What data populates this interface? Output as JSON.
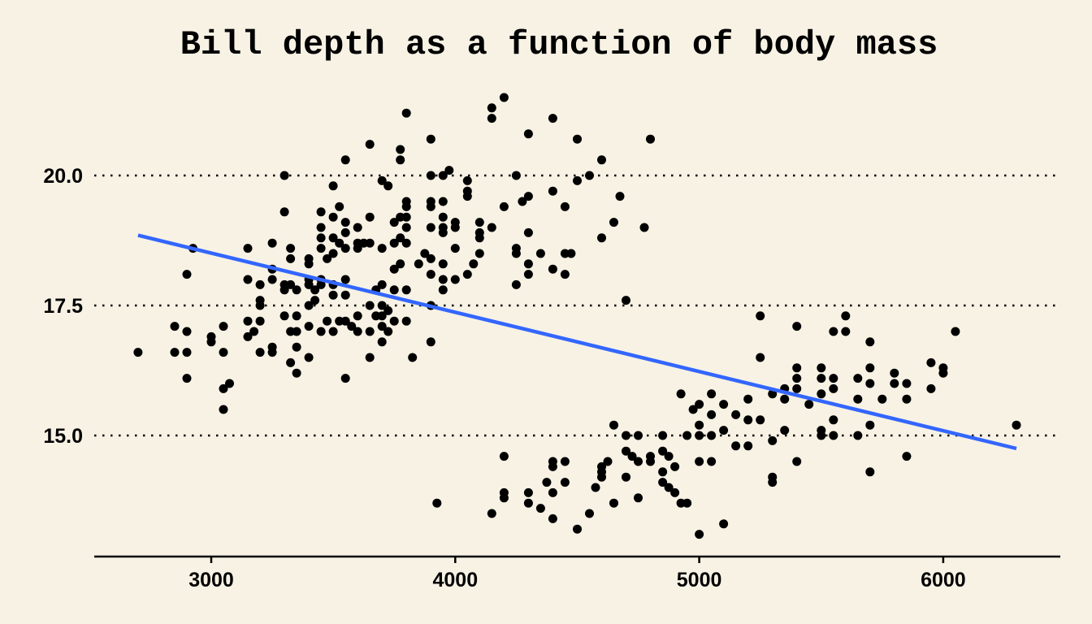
{
  "chart_data": {
    "type": "scatter",
    "title": "Bill depth as a function of body mass",
    "xlabel": "",
    "ylabel": "",
    "xlim": [
      2500,
      6480
    ],
    "ylim": [
      12.75,
      21.8
    ],
    "x_ticks": [
      3000,
      4000,
      5000,
      6000
    ],
    "y_ticks": [
      15.0,
      17.5,
      20.0
    ],
    "x_tick_labels": [
      "3000",
      "4000",
      "5000",
      "6000"
    ],
    "y_tick_labels": [
      "15.0",
      "17.5",
      "20.0"
    ],
    "grid": "horizontal dotted at y ticks",
    "colors": {
      "background": "#f7f2e4",
      "points": "#000000",
      "trend_line": "#3366ff",
      "grid": "#000000"
    },
    "trend_line": {
      "x": [
        2700,
        6300
      ],
      "y": [
        18.85,
        14.75
      ]
    },
    "points": [
      [
        2700,
        16.6
      ],
      [
        2850,
        16.6
      ],
      [
        2850,
        17.1
      ],
      [
        2900,
        17.0
      ],
      [
        2900,
        16.6
      ],
      [
        2900,
        18.1
      ],
      [
        2900,
        16.1
      ],
      [
        2925,
        18.6
      ],
      [
        3000,
        16.9
      ],
      [
        3000,
        16.8
      ],
      [
        3050,
        16.6
      ],
      [
        3050,
        17.1
      ],
      [
        3050,
        15.9
      ],
      [
        3050,
        15.5
      ],
      [
        3075,
        16.0
      ],
      [
        3150,
        18.6
      ],
      [
        3150,
        18.0
      ],
      [
        3150,
        17.2
      ],
      [
        3150,
        16.9
      ],
      [
        3175,
        17.0
      ],
      [
        3200,
        17.9
      ],
      [
        3200,
        17.5
      ],
      [
        3200,
        17.6
      ],
      [
        3200,
        17.2
      ],
      [
        3200,
        16.6
      ],
      [
        3250,
        18.2
      ],
      [
        3250,
        18.0
      ],
      [
        3250,
        16.7
      ],
      [
        3250,
        16.6
      ],
      [
        3250,
        18.7
      ],
      [
        3300,
        20.0
      ],
      [
        3300,
        19.3
      ],
      [
        3300,
        17.9
      ],
      [
        3300,
        17.8
      ],
      [
        3300,
        17.3
      ],
      [
        3325,
        18.6
      ],
      [
        3325,
        18.4
      ],
      [
        3325,
        17.9
      ],
      [
        3325,
        17.0
      ],
      [
        3325,
        16.4
      ],
      [
        3350,
        17.8
      ],
      [
        3350,
        17.3
      ],
      [
        3350,
        17.0
      ],
      [
        3350,
        16.7
      ],
      [
        3350,
        16.2
      ],
      [
        3400,
        18.4
      ],
      [
        3400,
        18.3
      ],
      [
        3400,
        18.0
      ],
      [
        3400,
        17.9
      ],
      [
        3400,
        17.5
      ],
      [
        3400,
        17.1
      ],
      [
        3400,
        16.5
      ],
      [
        3425,
        17.8
      ],
      [
        3425,
        17.6
      ],
      [
        3450,
        19.3
      ],
      [
        3450,
        19.0
      ],
      [
        3450,
        18.8
      ],
      [
        3450,
        18.6
      ],
      [
        3450,
        18.0
      ],
      [
        3450,
        17.9
      ],
      [
        3450,
        17.0
      ],
      [
        3475,
        18.4
      ],
      [
        3475,
        17.2
      ],
      [
        3500,
        19.8
      ],
      [
        3500,
        19.2
      ],
      [
        3500,
        18.8
      ],
      [
        3500,
        18.5
      ],
      [
        3500,
        17.9
      ],
      [
        3500,
        17.7
      ],
      [
        3500,
        17.0
      ],
      [
        3525,
        19.4
      ],
      [
        3525,
        18.7
      ],
      [
        3525,
        17.2
      ],
      [
        3550,
        20.3
      ],
      [
        3550,
        19.1
      ],
      [
        3550,
        18.9
      ],
      [
        3550,
        18.6
      ],
      [
        3550,
        18.0
      ],
      [
        3550,
        17.7
      ],
      [
        3550,
        17.2
      ],
      [
        3550,
        16.1
      ],
      [
        3575,
        17.1
      ],
      [
        3600,
        19.0
      ],
      [
        3600,
        18.7
      ],
      [
        3600,
        18.6
      ],
      [
        3600,
        17.3
      ],
      [
        3600,
        17.0
      ],
      [
        3625,
        18.7
      ],
      [
        3650,
        20.6
      ],
      [
        3650,
        19.2
      ],
      [
        3650,
        18.7
      ],
      [
        3650,
        17.5
      ],
      [
        3650,
        17.0
      ],
      [
        3650,
        16.5
      ],
      [
        3675,
        17.8
      ],
      [
        3675,
        17.3
      ],
      [
        3700,
        19.9
      ],
      [
        3700,
        18.6
      ],
      [
        3700,
        17.9
      ],
      [
        3700,
        17.5
      ],
      [
        3700,
        17.3
      ],
      [
        3700,
        17.1
      ],
      [
        3700,
        16.8
      ],
      [
        3725,
        19.8
      ],
      [
        3725,
        17.4
      ],
      [
        3725,
        17.0
      ],
      [
        3750,
        19.1
      ],
      [
        3750,
        18.7
      ],
      [
        3750,
        18.2
      ],
      [
        3750,
        17.8
      ],
      [
        3750,
        17.2
      ],
      [
        3775,
        20.5
      ],
      [
        3775,
        20.3
      ],
      [
        3775,
        19.2
      ],
      [
        3775,
        18.8
      ],
      [
        3775,
        18.3
      ],
      [
        3800,
        21.2
      ],
      [
        3800,
        19.5
      ],
      [
        3800,
        19.4
      ],
      [
        3800,
        19.2
      ],
      [
        3800,
        19.0
      ],
      [
        3800,
        18.7
      ],
      [
        3800,
        17.8
      ],
      [
        3800,
        17.2
      ],
      [
        3825,
        16.5
      ],
      [
        3850,
        18.3
      ],
      [
        3875,
        18.5
      ],
      [
        3900,
        20.7
      ],
      [
        3900,
        20.0
      ],
      [
        3900,
        19.5
      ],
      [
        3900,
        19.4
      ],
      [
        3900,
        19.0
      ],
      [
        3900,
        18.4
      ],
      [
        3900,
        18.1
      ],
      [
        3900,
        17.5
      ],
      [
        3900,
        16.8
      ],
      [
        3925,
        13.7
      ],
      [
        3950,
        20.0
      ],
      [
        3950,
        19.5
      ],
      [
        3950,
        19.2
      ],
      [
        3950,
        19.0
      ],
      [
        3950,
        18.9
      ],
      [
        3950,
        18.3
      ],
      [
        3950,
        18.0
      ],
      [
        3950,
        17.8
      ],
      [
        3975,
        20.1
      ],
      [
        4000,
        19.1
      ],
      [
        4000,
        18.6
      ],
      [
        4000,
        18.0
      ],
      [
        4000,
        19.0
      ],
      [
        4050,
        19.9
      ],
      [
        4050,
        19.7
      ],
      [
        4050,
        19.6
      ],
      [
        4050,
        18.1
      ],
      [
        4075,
        18.3
      ],
      [
        4100,
        19.1
      ],
      [
        4100,
        18.9
      ],
      [
        4100,
        18.8
      ],
      [
        4100,
        18.5
      ],
      [
        4150,
        21.3
      ],
      [
        4150,
        21.1
      ],
      [
        4150,
        19.0
      ],
      [
        4150,
        13.5
      ],
      [
        4200,
        21.5
      ],
      [
        4200,
        19.4
      ],
      [
        4200,
        14.6
      ],
      [
        4200,
        13.9
      ],
      [
        4200,
        13.8
      ],
      [
        4250,
        20.0
      ],
      [
        4250,
        18.6
      ],
      [
        4250,
        18.5
      ],
      [
        4250,
        17.9
      ],
      [
        4275,
        19.5
      ],
      [
        4300,
        20.8
      ],
      [
        4300,
        19.6
      ],
      [
        4300,
        18.9
      ],
      [
        4300,
        18.3
      ],
      [
        4300,
        18.1
      ],
      [
        4300,
        13.9
      ],
      [
        4300,
        13.7
      ],
      [
        4350,
        18.5
      ],
      [
        4350,
        13.6
      ],
      [
        4375,
        14.1
      ],
      [
        4400,
        21.1
      ],
      [
        4400,
        19.7
      ],
      [
        4400,
        18.2
      ],
      [
        4400,
        14.5
      ],
      [
        4400,
        14.4
      ],
      [
        4400,
        13.9
      ],
      [
        4400,
        13.4
      ],
      [
        4450,
        19.4
      ],
      [
        4450,
        18.5
      ],
      [
        4450,
        18.1
      ],
      [
        4450,
        14.5
      ],
      [
        4450,
        14.1
      ],
      [
        4475,
        18.5
      ],
      [
        4500,
        20.7
      ],
      [
        4500,
        19.9
      ],
      [
        4500,
        13.2
      ],
      [
        4550,
        20.0
      ],
      [
        4550,
        13.5
      ],
      [
        4575,
        14.0
      ],
      [
        4600,
        20.3
      ],
      [
        4600,
        18.8
      ],
      [
        4600,
        14.4
      ],
      [
        4600,
        14.3
      ],
      [
        4600,
        14.2
      ],
      [
        4625,
        14.5
      ],
      [
        4650,
        19.1
      ],
      [
        4650,
        15.2
      ],
      [
        4650,
        13.7
      ],
      [
        4675,
        19.6
      ],
      [
        4700,
        17.6
      ],
      [
        4700,
        15.0
      ],
      [
        4700,
        14.7
      ],
      [
        4700,
        14.2
      ],
      [
        4725,
        14.6
      ],
      [
        4750,
        15.0
      ],
      [
        4750,
        14.5
      ],
      [
        4750,
        13.8
      ],
      [
        4775,
        19.0
      ],
      [
        4800,
        20.7
      ],
      [
        4800,
        14.6
      ],
      [
        4800,
        14.5
      ],
      [
        4850,
        15.0
      ],
      [
        4850,
        14.7
      ],
      [
        4850,
        14.3
      ],
      [
        4850,
        14.1
      ],
      [
        4875,
        14.0
      ],
      [
        4875,
        14.6
      ],
      [
        4900,
        14.4
      ],
      [
        4900,
        13.9
      ],
      [
        4925,
        15.8
      ],
      [
        4925,
        13.7
      ],
      [
        4950,
        15.0
      ],
      [
        4950,
        13.7
      ],
      [
        4975,
        15.5
      ],
      [
        5000,
        15.6
      ],
      [
        5000,
        15.2
      ],
      [
        5000,
        14.5
      ],
      [
        5000,
        15.0
      ],
      [
        5000,
        13.1
      ],
      [
        5050,
        15.8
      ],
      [
        5050,
        15.4
      ],
      [
        5050,
        14.5
      ],
      [
        5050,
        15.0
      ],
      [
        5100,
        15.6
      ],
      [
        5100,
        15.1
      ],
      [
        5100,
        13.3
      ],
      [
        5150,
        15.4
      ],
      [
        5150,
        14.8
      ],
      [
        5200,
        15.7
      ],
      [
        5200,
        15.3
      ],
      [
        5200,
        14.8
      ],
      [
        5250,
        17.3
      ],
      [
        5250,
        16.5
      ],
      [
        5250,
        15.3
      ],
      [
        5300,
        15.8
      ],
      [
        5300,
        14.9
      ],
      [
        5300,
        14.2
      ],
      [
        5300,
        14.1
      ],
      [
        5350,
        15.9
      ],
      [
        5350,
        15.7
      ],
      [
        5350,
        15.1
      ],
      [
        5400,
        17.1
      ],
      [
        5400,
        16.3
      ],
      [
        5400,
        16.1
      ],
      [
        5400,
        15.9
      ],
      [
        5400,
        14.5
      ],
      [
        5450,
        15.6
      ],
      [
        5500,
        16.3
      ],
      [
        5500,
        16.1
      ],
      [
        5500,
        15.8
      ],
      [
        5500,
        15.1
      ],
      [
        5500,
        15.0
      ],
      [
        5550,
        17.0
      ],
      [
        5550,
        16.1
      ],
      [
        5550,
        15.9
      ],
      [
        5550,
        15.3
      ],
      [
        5550,
        15.0
      ],
      [
        5600,
        17.3
      ],
      [
        5600,
        17.0
      ],
      [
        5650,
        16.1
      ],
      [
        5650,
        15.7
      ],
      [
        5650,
        15.0
      ],
      [
        5700,
        16.8
      ],
      [
        5700,
        16.3
      ],
      [
        5700,
        16.0
      ],
      [
        5700,
        15.2
      ],
      [
        5700,
        14.3
      ],
      [
        5750,
        15.7
      ],
      [
        5800,
        16.2
      ],
      [
        5800,
        16.0
      ],
      [
        5850,
        16.0
      ],
      [
        5850,
        15.7
      ],
      [
        5850,
        14.6
      ],
      [
        5950,
        16.4
      ],
      [
        5950,
        15.9
      ],
      [
        6000,
        16.3
      ],
      [
        6000,
        16.2
      ],
      [
        6050,
        17.0
      ],
      [
        6300,
        15.2
      ]
    ]
  }
}
